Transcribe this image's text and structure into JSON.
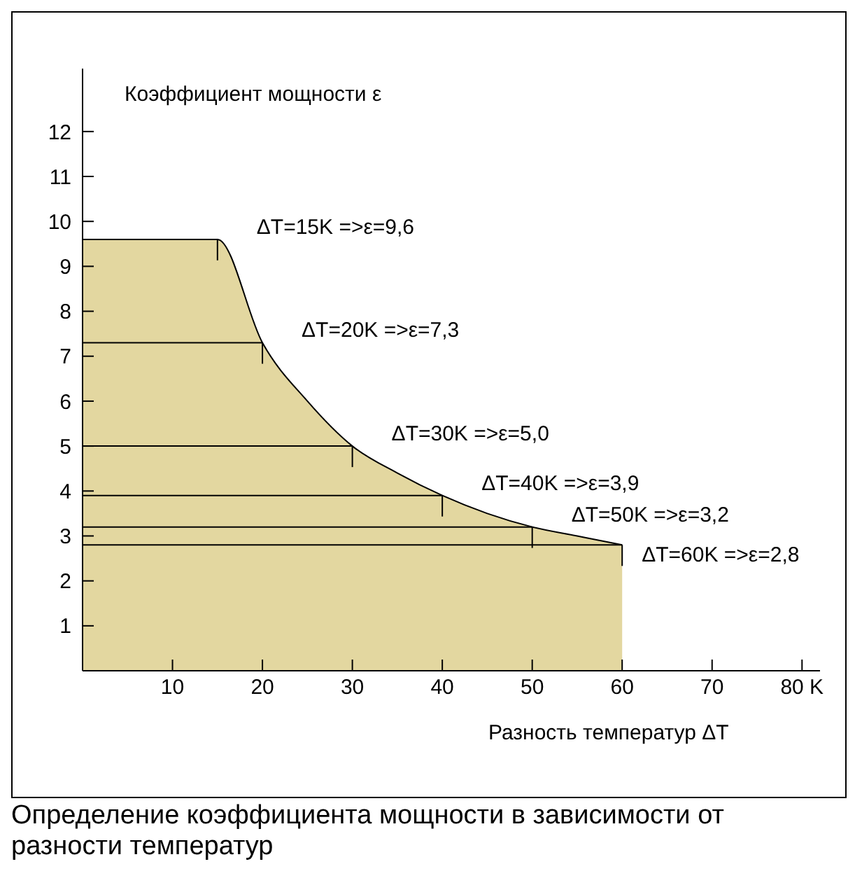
{
  "chart_data": {
    "type": "area",
    "ylabel": "Коэффициент мощности ε",
    "xlabel": "Разность температур ΔT",
    "x": [
      0,
      15,
      20,
      25,
      30,
      35,
      40,
      45,
      50,
      55,
      60
    ],
    "series": [
      {
        "color": "#e3d7a0",
        "values": [
          9.6,
          9.6,
          7.3,
          6.0,
          5.0,
          4.4,
          3.9,
          3.5,
          3.2,
          3.0,
          2.8
        ]
      },
      {
        "type": "line",
        "color": "#000000",
        "x": [
          0,
          20
        ],
        "values": [
          7.3,
          7.3
        ]
      },
      {
        "type": "line",
        "color": "#000000",
        "x": [
          0,
          30
        ],
        "values": [
          5.0,
          5.0
        ]
      },
      {
        "type": "line",
        "color": "#000000",
        "x": [
          0,
          40
        ],
        "values": [
          3.9,
          3.9
        ]
      },
      {
        "type": "line",
        "color": "#000000",
        "x": [
          0,
          50
        ],
        "values": [
          3.2,
          3.2
        ]
      },
      {
        "type": "line",
        "color": "#000000",
        "x": [
          0,
          60
        ],
        "values": [
          2.8,
          2.8
        ]
      }
    ],
    "xlim": [
      0,
      82
    ],
    "xticks": [
      10,
      20,
      30,
      40,
      50,
      60,
      70,
      {
        "value": 80,
        "label": "80 K"
      }
    ],
    "ylim": [
      0,
      13.4
    ],
    "yticks": [
      1,
      2,
      3,
      4,
      5,
      6,
      7,
      8,
      9,
      10,
      11,
      12
    ],
    "grid": false,
    "legend": false,
    "annotations": [
      {
        "text": "ΔT=15K =>ε=9,6",
        "x": 15,
        "y": 9.6
      },
      {
        "text": "ΔT=20K =>ε=7,3",
        "x": 20,
        "y": 7.3
      },
      {
        "text": "ΔT=30K =>ε=5,0",
        "x": 30,
        "y": 5.0
      },
      {
        "text": "ΔT=40K =>ε=3,9",
        "x": 40,
        "y": 3.9
      },
      {
        "text": "ΔT=50K =>ε=3,2",
        "x": 50,
        "y": 3.2
      },
      {
        "text": "ΔT=60K =>ε=2,8",
        "x": 60,
        "y": 2.8
      },
      "Определение коэффициента мощности в зависимости от разности температур"
    ]
  }
}
